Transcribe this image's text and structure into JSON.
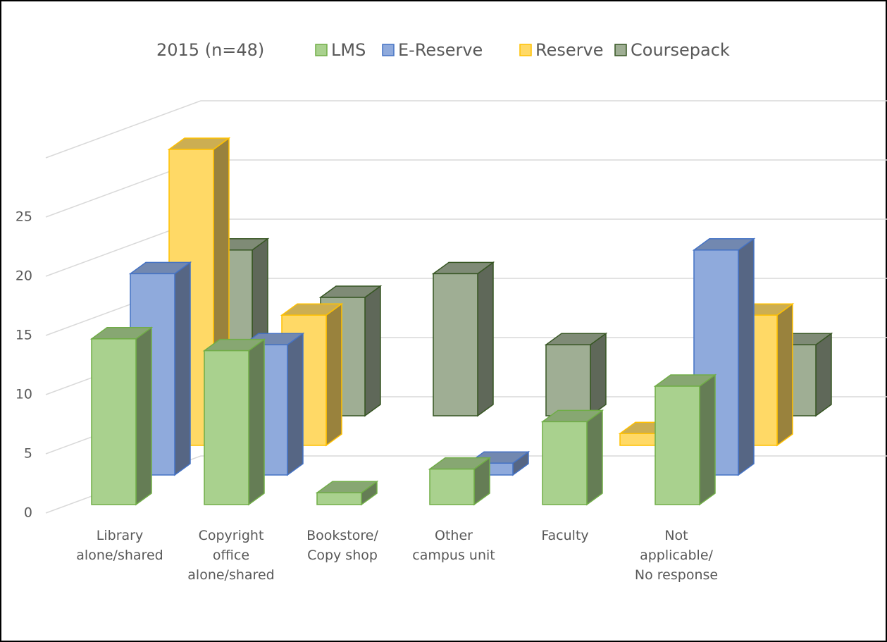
{
  "chart_data": {
    "type": "bar3d",
    "title": "2015 (n=48)",
    "categories": [
      "Library\nalone/shared",
      "Copyright\noffice\nalone/shared",
      "Bookstore/\nCopy shop",
      "Other\ncampus unit",
      "Faculty",
      "Not\napplicable/\nNo response"
    ],
    "series": [
      {
        "name": "LMS",
        "color": "#a9d18e",
        "values": [
          14,
          13,
          1,
          3,
          7,
          10
        ]
      },
      {
        "name": "E-Reserve",
        "color": "#8faadc",
        "values": [
          17,
          11,
          0,
          1,
          0,
          19
        ]
      },
      {
        "name": "Reserve",
        "color": "#ffd966",
        "values": [
          25,
          11,
          0,
          0,
          1,
          11
        ]
      },
      {
        "name": "Coursepack",
        "color": "#9fae94",
        "values": [
          14,
          10,
          12,
          6,
          0,
          6
        ]
      }
    ],
    "ylim": [
      0,
      30
    ],
    "yticks": [
      0,
      5,
      10,
      15,
      20,
      25
    ],
    "grid": true,
    "legend": "top"
  }
}
